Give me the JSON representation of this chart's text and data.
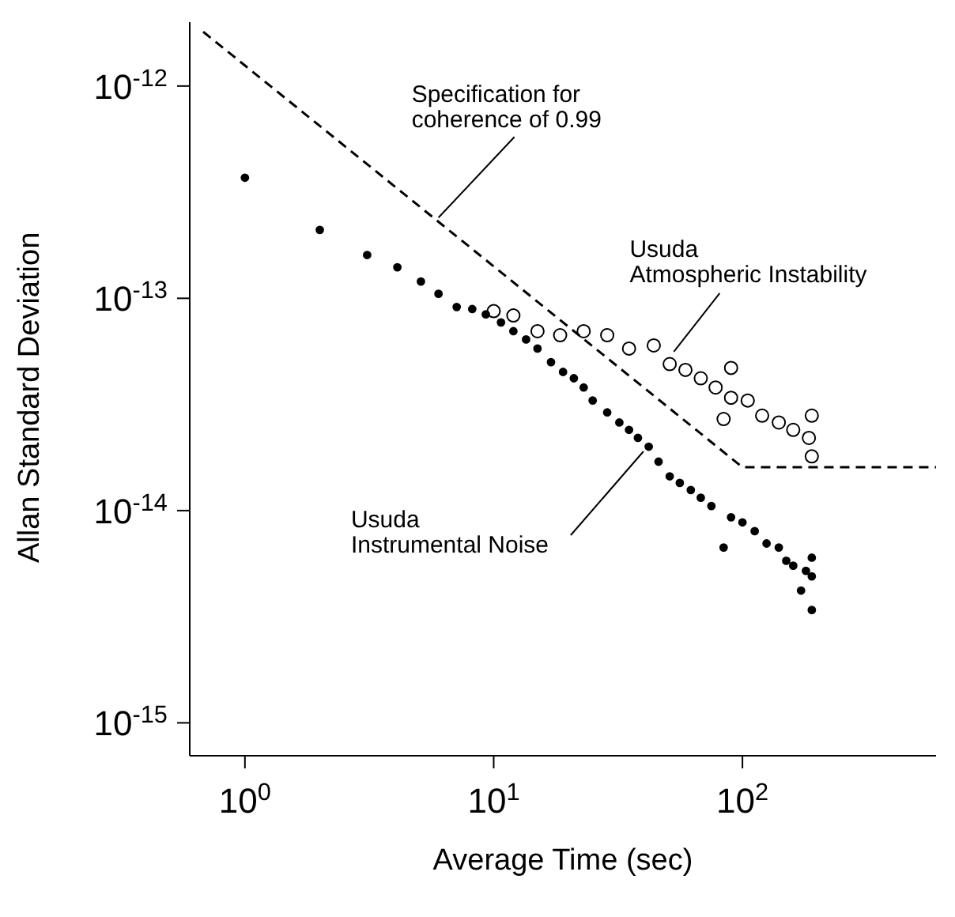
{
  "chart_data": {
    "type": "scatter",
    "xlabel": "Average Time (sec)",
    "ylabel": "Allan Standard Deviation",
    "log": "xy",
    "xlim": [
      0.6,
      600
    ],
    "xticks": [
      {
        "value": 1,
        "label": "10$^{0}$"
      },
      {
        "value": 10,
        "label": "10$^{1}$"
      },
      {
        "value": 100,
        "label": "10$^{2}$"
      }
    ],
    "ylim": [
      7e-16,
      2e-12
    ],
    "yticks": [
      {
        "value": 1e-15,
        "label": "10$^{-15}$"
      },
      {
        "value": 1e-14,
        "label": "10$^{-14}$"
      },
      {
        "value": 1e-13,
        "label": "10$^{-13}$"
      },
      {
        "value": 1e-12,
        "label": "10$^{-12}$"
      }
    ],
    "series": [
      {
        "type": "line",
        "color": "#000000",
        "line_style": "dashed",
        "marker": "none",
        "x": [
          0.68,
          100,
          600
        ],
        "values": [
          1.8e-12,
          1.6e-14,
          1.6e-14
        ]
      },
      {
        "color": "#000000",
        "marker": "circle",
        "x": [
          1,
          2,
          3.1,
          4.1,
          5.1,
          6,
          7.1,
          8.2,
          9.3,
          10.7,
          12,
          13.5,
          15,
          17,
          19,
          21,
          23,
          25,
          28.6,
          32,
          35,
          38,
          42,
          46,
          51,
          56,
          62,
          68,
          75,
          84,
          90,
          100,
          112,
          125,
          140,
          150,
          160,
          172,
          180,
          190,
          190,
          190
        ],
        "values": [
          3.7e-13,
          2.1e-13,
          1.6e-13,
          1.4e-13,
          1.2e-13,
          1.05e-13,
          9.1e-14,
          8.9e-14,
          8.4e-14,
          7.7e-14,
          7e-14,
          6.4e-14,
          5.8e-14,
          5e-14,
          4.5e-14,
          4.2e-14,
          3.8e-14,
          3.3e-14,
          2.9e-14,
          2.6e-14,
          2.4e-14,
          2.2e-14,
          2e-14,
          1.7e-14,
          1.45e-14,
          1.35e-14,
          1.25e-14,
          1.15e-14,
          1.05e-14,
          6.7e-15,
          9.3e-15,
          8.8e-15,
          8e-15,
          7e-15,
          6.7e-15,
          5.8e-15,
          5.5e-15,
          4.2e-15,
          5.2e-15,
          4.9e-15,
          3.4e-15,
          6e-15
        ]
      },
      {
        "color": "#000000",
        "x": [
          10,
          12,
          15,
          18.5,
          23,
          28.6,
          35,
          44,
          51,
          59,
          68,
          78,
          84,
          90,
          90,
          105,
          120,
          140,
          160,
          185,
          190,
          190
        ],
        "values": [
          8.7e-14,
          8.3e-14,
          7e-14,
          6.7e-14,
          7e-14,
          6.7e-14,
          5.8e-14,
          6e-14,
          4.9e-14,
          4.6e-14,
          4.2e-14,
          3.8e-14,
          2.7e-14,
          3.4e-14,
          4.7e-14,
          3.3e-14,
          2.8e-14,
          2.6e-14,
          2.4e-14,
          2.2e-14,
          1.8e-14,
          2.8e-14
        ]
      }
    ],
    "annotations": [
      {
        "text": "Specification for\ncoherence of 0.99",
        "x": 6,
        "y": 2.4e-13
      },
      {
        "text": "Usuda\nAtmospheric Instability",
        "x": 53,
        "y": 5.6e-14
      },
      {
        "text": "Usuda\nInstrumental Noise",
        "x": 40,
        "y": 1.9e-14
      }
    ]
  }
}
